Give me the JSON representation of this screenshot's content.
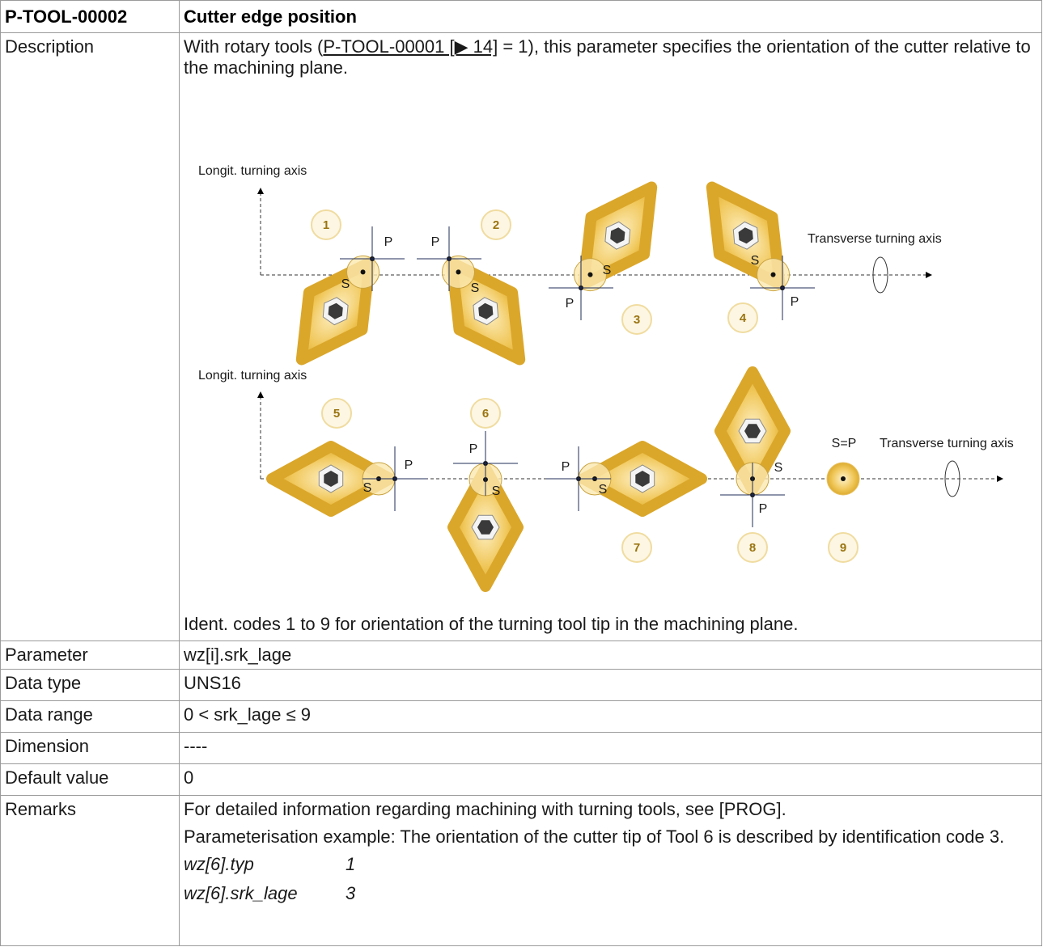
{
  "header": {
    "id": "P-TOOL-00002",
    "title": "Cutter edge position"
  },
  "rows": {
    "description": {
      "label": "Description",
      "text_before": "With rotary tools (",
      "link": "P-TOOL-00001 [▶ 14]",
      "text_after": " = 1), this parameter specifies the orientation of the cutter relative to the machining plane.",
      "caption": "Ident. codes 1 to 9 for orientation of the turning tool tip in the machining plane."
    },
    "parameter": {
      "label": "Parameter",
      "value": "wz[i].srk_lage"
    },
    "data_type": {
      "label": "Data type",
      "value": "UNS16"
    },
    "data_range": {
      "label": "Data range",
      "value": "0 < srk_lage ≤ 9"
    },
    "dimension": {
      "label": "Dimension",
      "value": "----"
    },
    "default_value": {
      "label": "Default value",
      "value": "0"
    },
    "remarks": {
      "label": "Remarks",
      "paragraphs": [
        "For detailed information regarding machining with turning tools, see [PROG].",
        "Parameterisation example: The orientation of the cutter tip of Tool 6 is described by identification code 3."
      ],
      "code": [
        [
          "wz[6].typ",
          "1"
        ],
        [
          "wz[6].srk_lage",
          "3"
        ]
      ]
    }
  },
  "diagram": {
    "rows": [
      {
        "longit_axis": "Longit. turning axis",
        "transverse_axis": "Transverse turning axis"
      },
      {
        "longit_axis": "Longit. turning axis",
        "transverse_axis": "Transverse turning axis"
      }
    ],
    "tools": [
      {
        "code": "1",
        "p": "P",
        "s": "S"
      },
      {
        "code": "2",
        "p": "P",
        "s": "S"
      },
      {
        "code": "3",
        "p": "P",
        "s": "S"
      },
      {
        "code": "4",
        "p": "P",
        "s": "S"
      },
      {
        "code": "5",
        "p": "P",
        "s": "S"
      },
      {
        "code": "6",
        "p": "P",
        "s": "S"
      },
      {
        "code": "7",
        "p": "P",
        "s": "S"
      },
      {
        "code": "8",
        "p": "P",
        "s": "S"
      },
      {
        "code": "9",
        "sp": "S=P"
      }
    ]
  }
}
